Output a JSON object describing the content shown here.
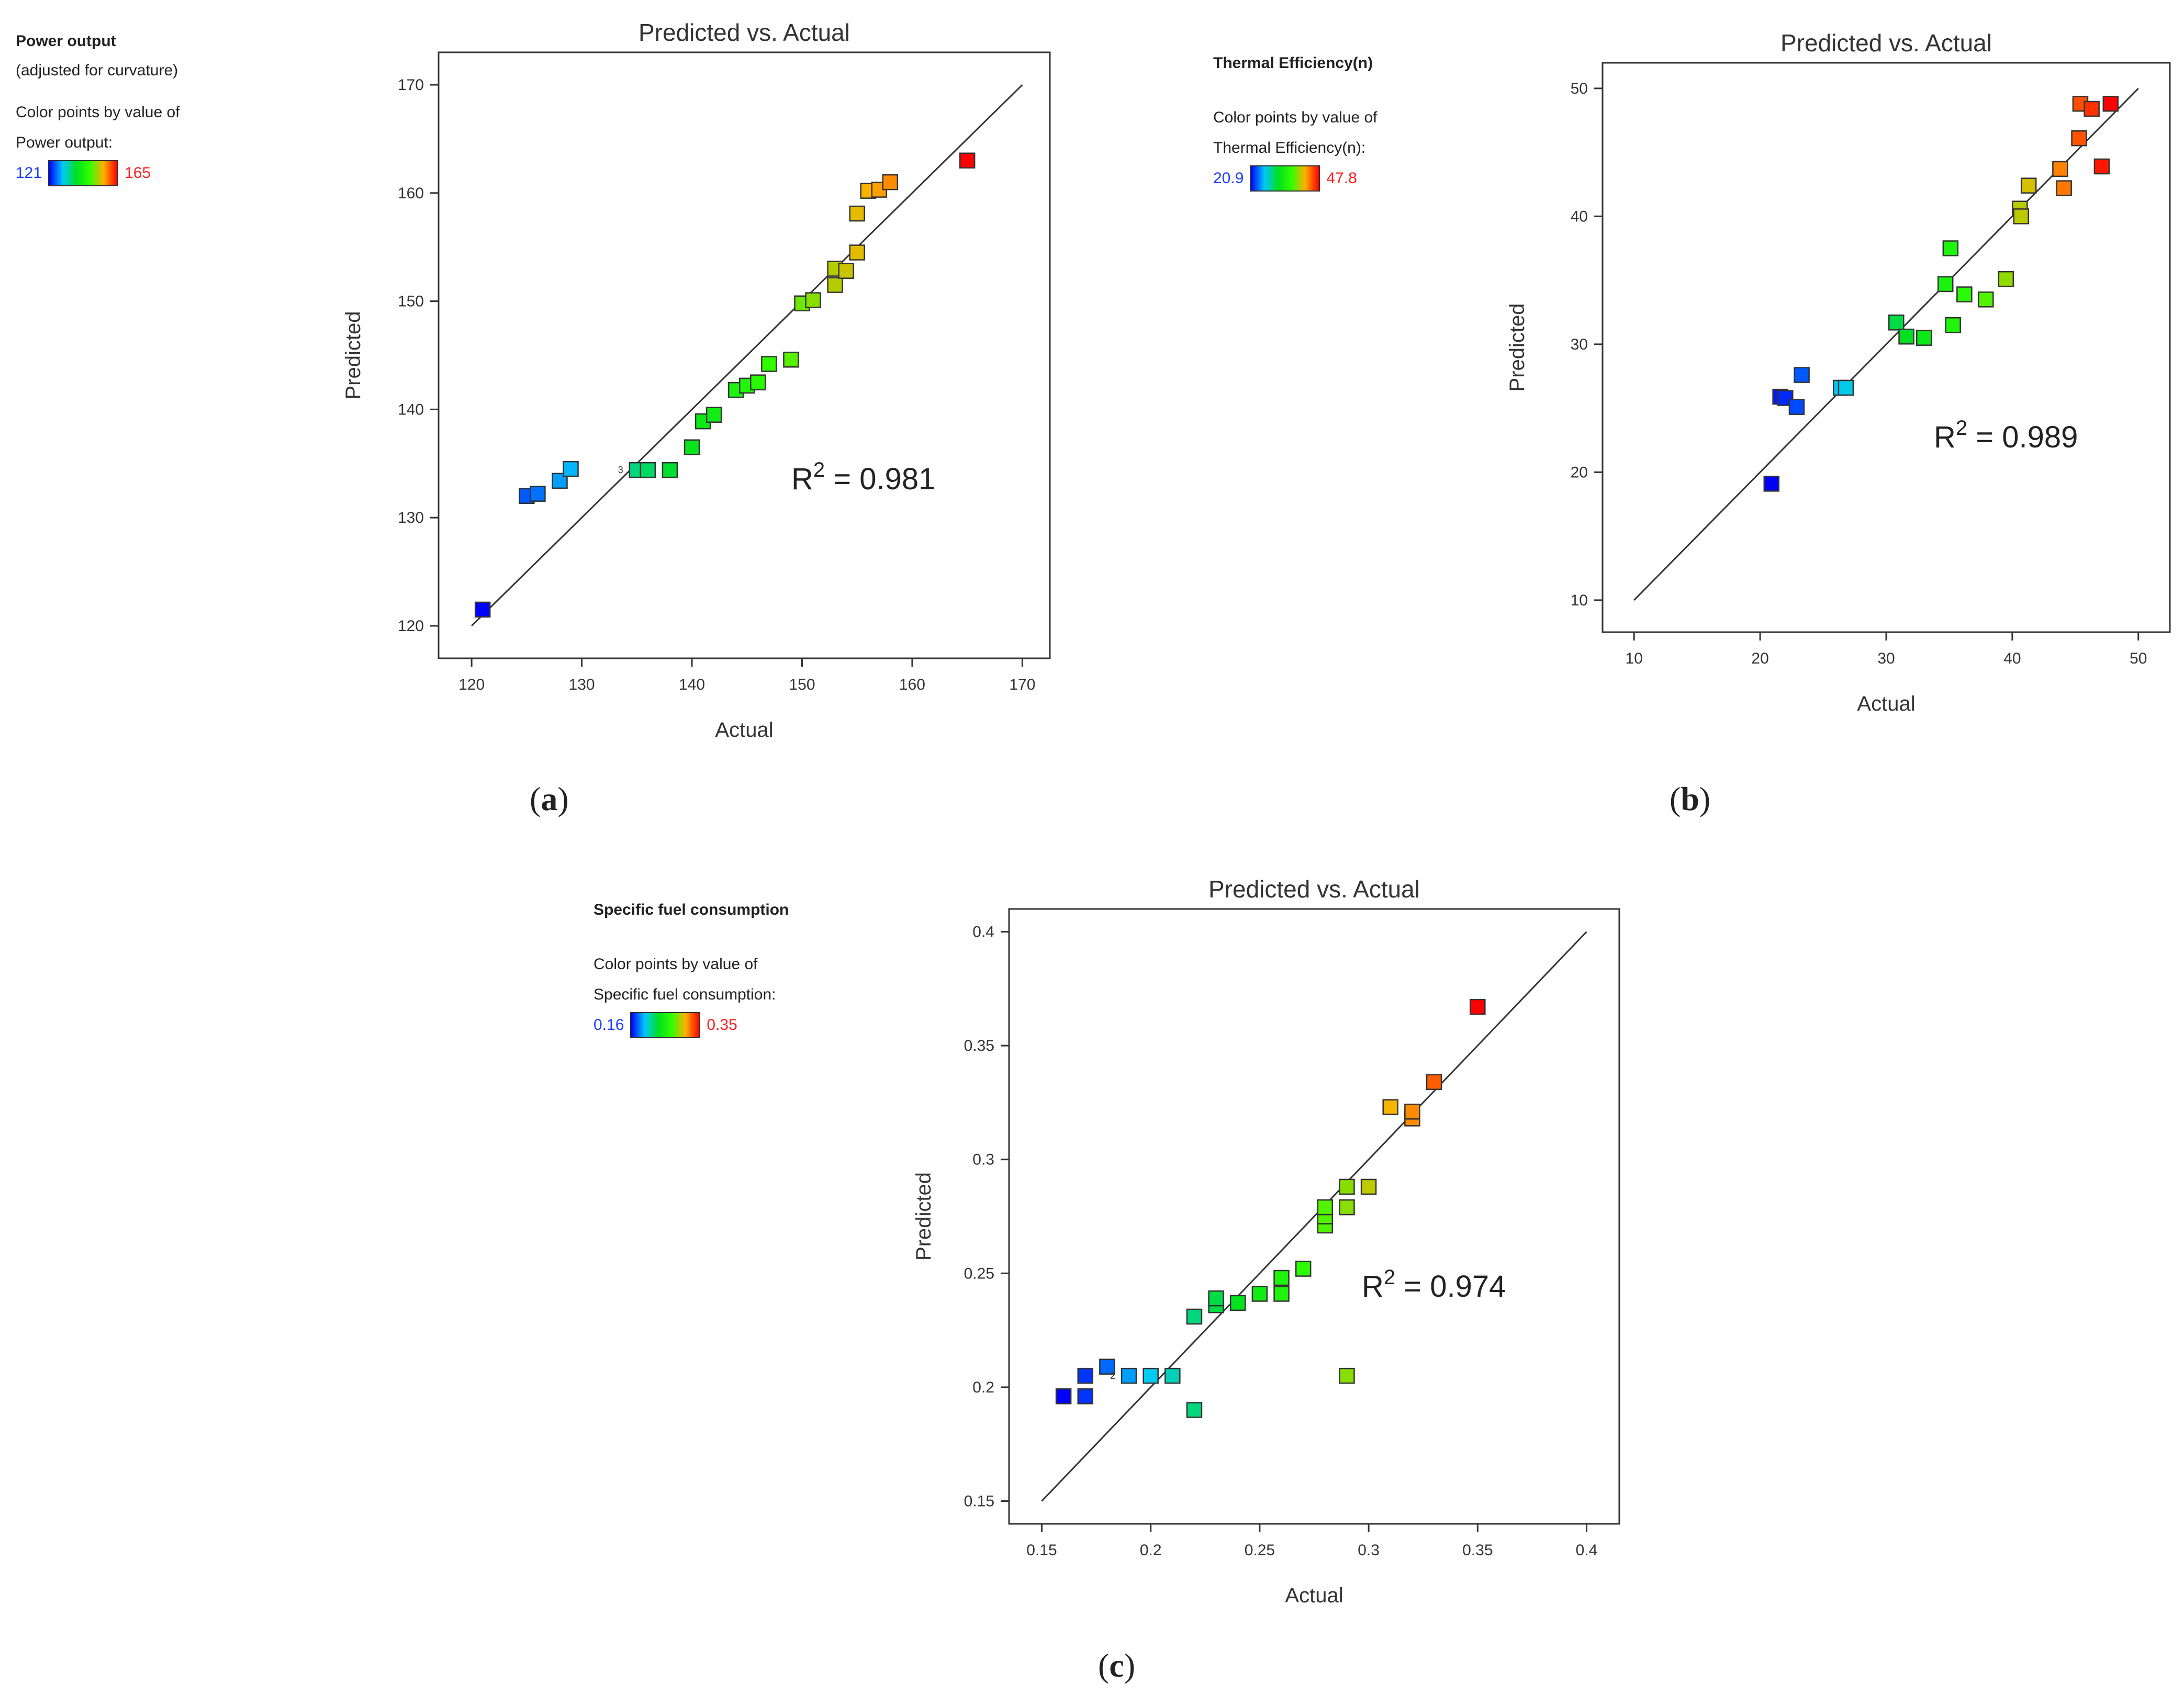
{
  "panels": [
    {
      "caption_letter": "a",
      "legend": {
        "title": "Power output",
        "subtitle": "(adjusted for curvature)",
        "line1": "Color points by value of",
        "line2": "Power output:",
        "min_label": "121",
        "max_label": "165"
      },
      "r2_base": "R",
      "r2_exp": "2",
      "r2_value": " = 0.981",
      "point_label": "3"
    },
    {
      "caption_letter": "b",
      "legend": {
        "title": "Thermal Efficiency(n)",
        "line1": "Color points by value of",
        "line2": "Thermal Efficiency(n):",
        "min_label": "20.9",
        "max_label": "47.8"
      },
      "r2_base": "R",
      "r2_exp": "2",
      "r2_value": " = 0.989"
    },
    {
      "caption_letter": "c",
      "legend": {
        "title": "Specific fuel consumption",
        "line1": "Color points by value of",
        "line2": "Specific fuel consumption:",
        "min_label": "0.16",
        "max_label": "0.35"
      },
      "r2_base": "R",
      "r2_exp": "2",
      "r2_value": " = 0.974",
      "point_label": "2"
    }
  ],
  "colors": {
    "scale": [
      "#0000ff",
      "#00c8ff",
      "#00e020",
      "#30ff00",
      "#ffb000",
      "#ff0000"
    ],
    "frame": "#333333",
    "fit_line": "#333333"
  },
  "chart_data": [
    {
      "type": "scatter",
      "title": "Predicted vs. Actual",
      "xlabel": "Actual",
      "ylabel": "Predicted",
      "xlim": [
        117,
        172.5
      ],
      "ylim": [
        117,
        173
      ],
      "xticks": [
        120,
        130,
        140,
        150,
        160,
        170
      ],
      "yticks": [
        120,
        130,
        140,
        150,
        160,
        170
      ],
      "diagonal": [
        120,
        170
      ],
      "color_range": [
        121,
        165
      ],
      "grid": false,
      "points": [
        {
          "x": 121,
          "y": 121.5
        },
        {
          "x": 125,
          "y": 132.0
        },
        {
          "x": 126,
          "y": 132.2
        },
        {
          "x": 128,
          "y": 133.4
        },
        {
          "x": 129,
          "y": 134.5
        },
        {
          "x": 135,
          "y": 134.4
        },
        {
          "x": 136,
          "y": 134.4
        },
        {
          "x": 138,
          "y": 134.4
        },
        {
          "x": 140,
          "y": 136.5
        },
        {
          "x": 141,
          "y": 138.9
        },
        {
          "x": 142,
          "y": 139.5
        },
        {
          "x": 144,
          "y": 141.8
        },
        {
          "x": 145,
          "y": 142.2
        },
        {
          "x": 146,
          "y": 142.5
        },
        {
          "x": 147,
          "y": 144.2
        },
        {
          "x": 149,
          "y": 144.6
        },
        {
          "x": 150,
          "y": 149.8
        },
        {
          "x": 151,
          "y": 150.1
        },
        {
          "x": 153,
          "y": 151.5
        },
        {
          "x": 153,
          "y": 153.0
        },
        {
          "x": 154,
          "y": 152.8
        },
        {
          "x": 155,
          "y": 154.5
        },
        {
          "x": 155,
          "y": 158.1
        },
        {
          "x": 156,
          "y": 160.2
        },
        {
          "x": 157,
          "y": 160.3
        },
        {
          "x": 158,
          "y": 161.0
        },
        {
          "x": 165,
          "y": 163.0
        }
      ]
    },
    {
      "type": "scatter",
      "title": "Predicted vs. Actual",
      "xlabel": "Actual",
      "ylabel": "Predicted",
      "xlim": [
        7.5,
        52.5
      ],
      "ylim": [
        7.5,
        52
      ],
      "xticks": [
        10,
        20,
        30,
        40,
        50
      ],
      "yticks": [
        10,
        20,
        30,
        40,
        50
      ],
      "diagonal": [
        10,
        50
      ],
      "color_range": [
        20.9,
        47.8
      ],
      "grid": false,
      "points": [
        {
          "x": 20.9,
          "y": 19.1
        },
        {
          "x": 21.6,
          "y": 25.9
        },
        {
          "x": 22.0,
          "y": 25.8
        },
        {
          "x": 22.9,
          "y": 25.1
        },
        {
          "x": 23.3,
          "y": 27.6
        },
        {
          "x": 26.4,
          "y": 26.6
        },
        {
          "x": 26.8,
          "y": 26.6
        },
        {
          "x": 30.8,
          "y": 31.7
        },
        {
          "x": 31.6,
          "y": 30.6
        },
        {
          "x": 33.0,
          "y": 30.5
        },
        {
          "x": 34.7,
          "y": 34.7
        },
        {
          "x": 35.1,
          "y": 37.5
        },
        {
          "x": 35.3,
          "y": 31.5
        },
        {
          "x": 36.2,
          "y": 33.9
        },
        {
          "x": 37.9,
          "y": 33.5
        },
        {
          "x": 39.5,
          "y": 35.1
        },
        {
          "x": 40.6,
          "y": 40.6
        },
        {
          "x": 40.7,
          "y": 40.0
        },
        {
          "x": 41.3,
          "y": 42.4
        },
        {
          "x": 43.8,
          "y": 43.7
        },
        {
          "x": 44.1,
          "y": 42.2
        },
        {
          "x": 45.3,
          "y": 46.1
        },
        {
          "x": 45.4,
          "y": 48.8
        },
        {
          "x": 46.3,
          "y": 48.4
        },
        {
          "x": 47.1,
          "y": 43.9
        },
        {
          "x": 47.8,
          "y": 48.8
        }
      ]
    },
    {
      "type": "scatter",
      "title": "Predicted vs. Actual",
      "xlabel": "Actual",
      "ylabel": "Predicted",
      "xlim": [
        0.135,
        0.415
      ],
      "ylim": [
        0.14,
        0.41
      ],
      "xticks": [
        0.15,
        0.2,
        0.25,
        0.3,
        0.35,
        0.4
      ],
      "xtick_labels": [
        "0.15",
        "0.2",
        "0.25",
        "0.3",
        "0.35",
        "0.4"
      ],
      "yticks": [
        0.15,
        0.2,
        0.25,
        0.3,
        0.35,
        0.4
      ],
      "ytick_labels": [
        "0.15",
        "0.2",
        "0.25",
        "0.3",
        "0.35",
        "0.4"
      ],
      "diagonal": [
        0.15,
        0.4
      ],
      "color_range": [
        0.16,
        0.35
      ],
      "grid": false,
      "points": [
        {
          "x": 0.16,
          "y": 0.196
        },
        {
          "x": 0.17,
          "y": 0.205
        },
        {
          "x": 0.17,
          "y": 0.196
        },
        {
          "x": 0.18,
          "y": 0.209
        },
        {
          "x": 0.19,
          "y": 0.205
        },
        {
          "x": 0.2,
          "y": 0.205
        },
        {
          "x": 0.21,
          "y": 0.205
        },
        {
          "x": 0.22,
          "y": 0.231
        },
        {
          "x": 0.22,
          "y": 0.19
        },
        {
          "x": 0.23,
          "y": 0.236
        },
        {
          "x": 0.23,
          "y": 0.239
        },
        {
          "x": 0.24,
          "y": 0.237
        },
        {
          "x": 0.25,
          "y": 0.241
        },
        {
          "x": 0.26,
          "y": 0.241
        },
        {
          "x": 0.26,
          "y": 0.248
        },
        {
          "x": 0.27,
          "y": 0.252
        },
        {
          "x": 0.28,
          "y": 0.271
        },
        {
          "x": 0.28,
          "y": 0.275
        },
        {
          "x": 0.28,
          "y": 0.279
        },
        {
          "x": 0.29,
          "y": 0.279
        },
        {
          "x": 0.29,
          "y": 0.288
        },
        {
          "x": 0.3,
          "y": 0.288
        },
        {
          "x": 0.29,
          "y": 0.205
        },
        {
          "x": 0.31,
          "y": 0.323
        },
        {
          "x": 0.32,
          "y": 0.318
        },
        {
          "x": 0.32,
          "y": 0.321
        },
        {
          "x": 0.33,
          "y": 0.334
        },
        {
          "x": 0.35,
          "y": 0.367
        }
      ]
    }
  ]
}
